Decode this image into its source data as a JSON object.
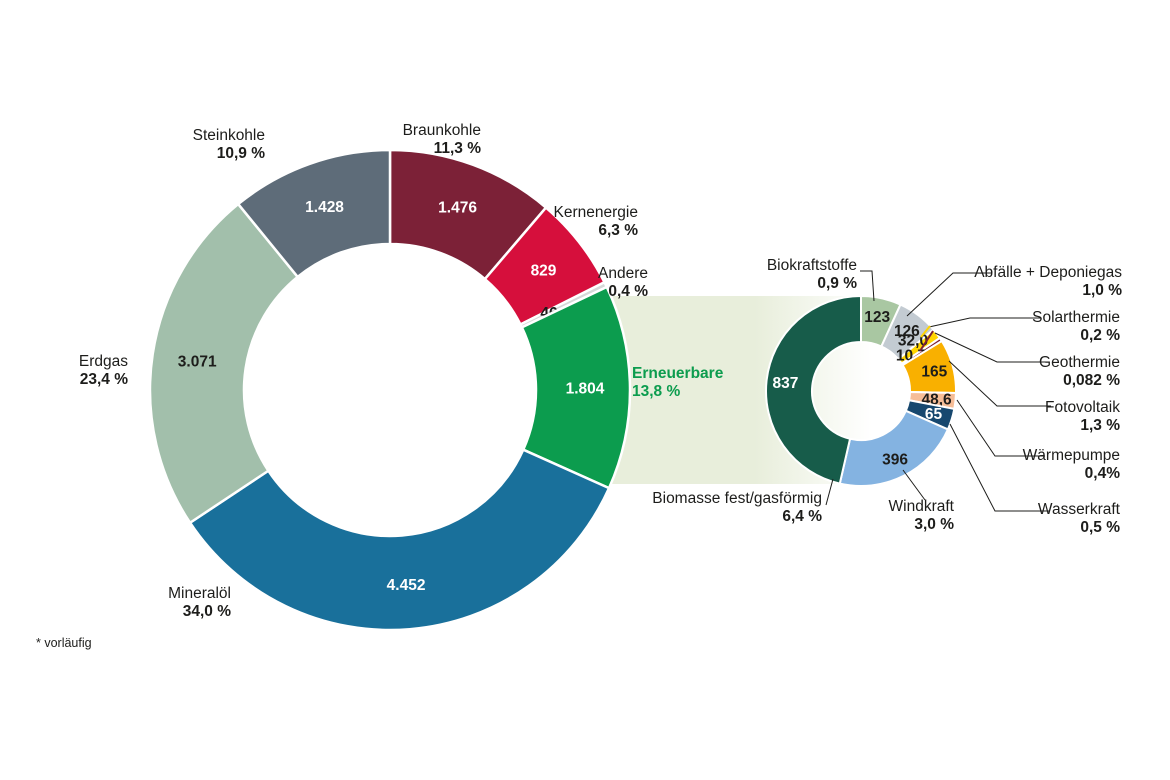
{
  "footnote": "* vorläufig",
  "colors": {
    "band": "#e8eedb",
    "accent_green": "#0c9c4e",
    "text": "#1d1d1b",
    "separator": "#ffffff"
  },
  "chart_data": [
    {
      "type": "donut",
      "name": "Primärenergieverbrauch",
      "start_angle_deg": 0,
      "direction": "clockwise",
      "segments": [
        {
          "label": "Braunkohle",
          "percent": "11,3 %",
          "value": 1476,
          "value_label": "1.476",
          "color": "#7c2137",
          "value_color": "#ffffff"
        },
        {
          "label": "Kernenergie",
          "percent": "6,3 %",
          "value": 829,
          "value_label": "829",
          "color": "#d60f3c",
          "value_color": "#ffffff"
        },
        {
          "label": "Andere",
          "percent": "0,4 %",
          "value": 46,
          "value_label": "46",
          "color": "#d6d9d8",
          "value_color": "#1d1d1b"
        },
        {
          "label": "Erneuerbare",
          "percent": "13,8 %",
          "value": 1804,
          "value_label": "1.804",
          "color": "#0c9c4e",
          "value_color": "#ffffff"
        },
        {
          "label": "Mineralöl",
          "percent": "34,0 %",
          "value": 4452,
          "value_label": "4.452",
          "color": "#19709b",
          "value_color": "#ffffff"
        },
        {
          "label": "Erdgas",
          "percent": "23,4 %",
          "value": 3071,
          "value_label": "3.071",
          "color": "#a2bfab",
          "value_color": "#1d1d1b"
        },
        {
          "label": "Steinkohle",
          "percent": "10,9 %",
          "value": 1428,
          "value_label": "1.428",
          "color": "#5e6c79",
          "value_color": "#ffffff"
        }
      ]
    },
    {
      "type": "donut",
      "name": "Erneuerbare Detail",
      "start_angle_deg": 0,
      "direction": "clockwise",
      "segments": [
        {
          "label": "Biokraftstoffe",
          "percent": "0,9 %",
          "value": 123,
          "value_label": "123",
          "color": "#a9c7a2",
          "value_color": "#1d1d1b"
        },
        {
          "label": "Abfälle + Deponiegas",
          "percent": "1,0 %",
          "value": 126,
          "value_label": "126",
          "color": "#c3cbd2",
          "value_color": "#1d1d1b"
        },
        {
          "label": "Solarthermie",
          "percent": "0,2 %",
          "value": 32.0,
          "value_label": "32,0",
          "color": "#ffd500",
          "value_color": "#1d1d1b"
        },
        {
          "label": "Geothermie",
          "percent": "0,082 %",
          "value": 10.7,
          "value_label": "10,7",
          "color": "#7c2137",
          "value_color": "#1d1d1b"
        },
        {
          "label": "Fotovoltaik",
          "percent": "1,3 %",
          "value": 165,
          "value_label": "165",
          "color": "#f9b000",
          "value_color": "#1d1d1b"
        },
        {
          "label": "Wärmepumpe",
          "percent": "0,4%",
          "value": 48.6,
          "value_label": "48,6",
          "color": "#f6bd97",
          "value_color": "#1d1d1b"
        },
        {
          "label": "Wasserkraft",
          "percent": "0,5 %",
          "value": 65,
          "value_label": "65",
          "color": "#17486f",
          "value_color": "#ffffff"
        },
        {
          "label": "Windkraft",
          "percent": "3,0 %",
          "value": 396,
          "value_label": "396",
          "color": "#84b3e1",
          "value_color": "#1d1d1b"
        },
        {
          "label": "Biomasse fest/gasförmig",
          "percent": "6,4 %",
          "value": 837,
          "value_label": "837",
          "color": "#175c4a",
          "value_color": "#ffffff"
        }
      ]
    }
  ]
}
